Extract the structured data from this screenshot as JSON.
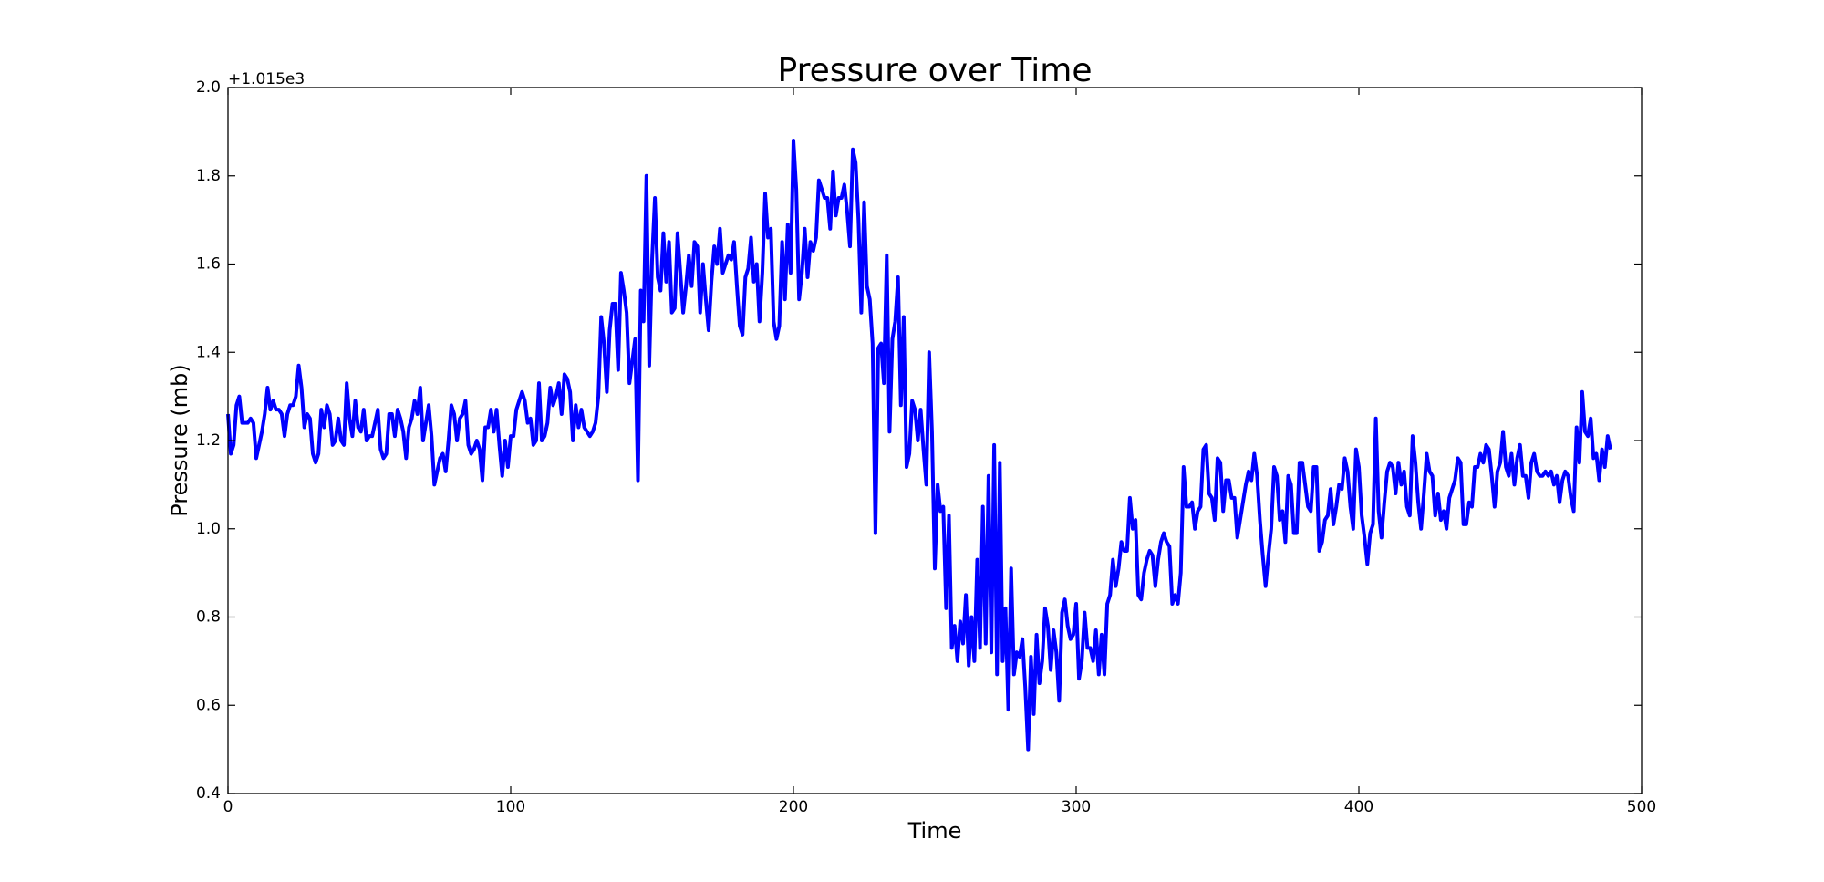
{
  "chart_data": {
    "type": "line",
    "title": "Pressure over Time",
    "x_label": "Time",
    "y_label": "Pressure (mb)",
    "y_offset_label": "+1.015e3",
    "xlim": [
      0,
      500
    ],
    "xticks": [
      0,
      100,
      200,
      300,
      400,
      500
    ],
    "ylim": [
      0.4,
      2.0
    ],
    "yticks": [
      0.4,
      0.6,
      0.8,
      {
        "value": 1.0,
        "label": "1.0"
      },
      1.2,
      1.4,
      1.6,
      1.8,
      {
        "value": 2.0,
        "label": "2.0"
      }
    ],
    "x": [
      0,
      1,
      2,
      3,
      4,
      5,
      6,
      7,
      8,
      9,
      10,
      11,
      12,
      13,
      14,
      15,
      16,
      17,
      18,
      19,
      20,
      21,
      22,
      23,
      24,
      25,
      26,
      27,
      28,
      29,
      30,
      31,
      32,
      33,
      34,
      35,
      36,
      37,
      38,
      39,
      40,
      41,
      42,
      43,
      44,
      45,
      46,
      47,
      48,
      49,
      50,
      51,
      52,
      53,
      54,
      55,
      56,
      57,
      58,
      59,
      60,
      61,
      62,
      63,
      64,
      65,
      66,
      67,
      68,
      69,
      70,
      71,
      72,
      73,
      74,
      75,
      76,
      77,
      78,
      79,
      80,
      81,
      82,
      83,
      84,
      85,
      86,
      87,
      88,
      89,
      90,
      91,
      92,
      93,
      94,
      95,
      96,
      97,
      98,
      99,
      100,
      101,
      102,
      103,
      104,
      105,
      106,
      107,
      108,
      109,
      110,
      111,
      112,
      113,
      114,
      115,
      116,
      117,
      118,
      119,
      120,
      121,
      122,
      123,
      124,
      125,
      126,
      127,
      128,
      129,
      130,
      131,
      132,
      133,
      134,
      135,
      136,
      137,
      138,
      139,
      140,
      141,
      142,
      143,
      144,
      145,
      146,
      147,
      148,
      149,
      150,
      151,
      152,
      153,
      154,
      155,
      156,
      157,
      158,
      159,
      160,
      161,
      162,
      163,
      164,
      165,
      166,
      167,
      168,
      169,
      170,
      171,
      172,
      173,
      174,
      175,
      176,
      177,
      178,
      179,
      180,
      181,
      182,
      183,
      184,
      185,
      186,
      187,
      188,
      189,
      190,
      191,
      192,
      193,
      194,
      195,
      196,
      197,
      198,
      199,
      200,
      201,
      202,
      203,
      204,
      205,
      206,
      207,
      208,
      209,
      210,
      211,
      212,
      213,
      214,
      215,
      216,
      217,
      218,
      219,
      220,
      221,
      222,
      223,
      224,
      225,
      226,
      227,
      228,
      229,
      230,
      231,
      232,
      233,
      234,
      235,
      236,
      237,
      238,
      239,
      240,
      241,
      242,
      243,
      244,
      245,
      246,
      247,
      248,
      249,
      250,
      251,
      252,
      253,
      254,
      255,
      256,
      257,
      258,
      259,
      260,
      261,
      262,
      263,
      264,
      265,
      266,
      267,
      268,
      269,
      270,
      271,
      272,
      273,
      274,
      275,
      276,
      277,
      278,
      279,
      280,
      281,
      282,
      283,
      284,
      285,
      286,
      287,
      288,
      289,
      290,
      291,
      292,
      293,
      294,
      295,
      296,
      297,
      298,
      299,
      300,
      301,
      302,
      303,
      304,
      305,
      306,
      307,
      308,
      309,
      310,
      311,
      312,
      313,
      314,
      315,
      316,
      317,
      318,
      319,
      320,
      321,
      322,
      323,
      324,
      325,
      326,
      327,
      328,
      329,
      330,
      331,
      332,
      333,
      334,
      335,
      336,
      337,
      338,
      339,
      340,
      341,
      342,
      343,
      344,
      345,
      346,
      347,
      348,
      349,
      350,
      351,
      352,
      353,
      354,
      355,
      356,
      357,
      358,
      359,
      360,
      361,
      362,
      363,
      364,
      365,
      366,
      367,
      368,
      369,
      370,
      371,
      372,
      373,
      374,
      375,
      376,
      377,
      378,
      379,
      380,
      381,
      382,
      383,
      384,
      385,
      386,
      387,
      388,
      389,
      390,
      391,
      392,
      393,
      394,
      395,
      396,
      397,
      398,
      399,
      400,
      401,
      402,
      403,
      404,
      405,
      406,
      407,
      408,
      409,
      410,
      411,
      412,
      413,
      414,
      415,
      416,
      417,
      418,
      419,
      420,
      421,
      422,
      423,
      424,
      425,
      426,
      427,
      428,
      429,
      430,
      431,
      432,
      433,
      434,
      435,
      436,
      437,
      438,
      439,
      440,
      441,
      442,
      443,
      444,
      445,
      446,
      447,
      448,
      449,
      450,
      451,
      452,
      453,
      454,
      455,
      456,
      457,
      458,
      459,
      460,
      461,
      462,
      463,
      464,
      465,
      466,
      467,
      468,
      469,
      470,
      471,
      472,
      473,
      474,
      475,
      476,
      477,
      478,
      479,
      480,
      481,
      482,
      483,
      484,
      485,
      486,
      487,
      488,
      489
    ],
    "series": [
      {
        "color": "#0000ff",
        "values": [
          1.26,
          1.17,
          1.19,
          1.28,
          1.3,
          1.24,
          1.24,
          1.24,
          1.25,
          1.24,
          1.16,
          1.19,
          1.22,
          1.26,
          1.32,
          1.27,
          1.29,
          1.27,
          1.27,
          1.26,
          1.21,
          1.26,
          1.28,
          1.28,
          1.3,
          1.37,
          1.32,
          1.23,
          1.26,
          1.25,
          1.17,
          1.15,
          1.17,
          1.27,
          1.23,
          1.28,
          1.26,
          1.19,
          1.2,
          1.25,
          1.2,
          1.19,
          1.33,
          1.25,
          1.21,
          1.29,
          1.23,
          1.22,
          1.27,
          1.2,
          1.21,
          1.21,
          1.24,
          1.27,
          1.18,
          1.16,
          1.17,
          1.26,
          1.26,
          1.21,
          1.27,
          1.25,
          1.22,
          1.16,
          1.23,
          1.25,
          1.29,
          1.26,
          1.32,
          1.2,
          1.24,
          1.28,
          1.21,
          1.1,
          1.13,
          1.16,
          1.17,
          1.13,
          1.2,
          1.28,
          1.26,
          1.2,
          1.25,
          1.26,
          1.29,
          1.19,
          1.17,
          1.18,
          1.2,
          1.18,
          1.11,
          1.23,
          1.23,
          1.27,
          1.22,
          1.27,
          1.19,
          1.12,
          1.2,
          1.14,
          1.21,
          1.21,
          1.27,
          1.29,
          1.31,
          1.29,
          1.24,
          1.25,
          1.19,
          1.2,
          1.33,
          1.2,
          1.21,
          1.24,
          1.32,
          1.28,
          1.3,
          1.33,
          1.26,
          1.35,
          1.34,
          1.31,
          1.2,
          1.28,
          1.23,
          1.27,
          1.23,
          1.22,
          1.21,
          1.22,
          1.24,
          1.3,
          1.48,
          1.42,
          1.31,
          1.45,
          1.51,
          1.51,
          1.36,
          1.58,
          1.54,
          1.49,
          1.33,
          1.38,
          1.43,
          1.11,
          1.54,
          1.47,
          1.8,
          1.37,
          1.61,
          1.75,
          1.57,
          1.54,
          1.67,
          1.56,
          1.65,
          1.49,
          1.5,
          1.67,
          1.58,
          1.49,
          1.55,
          1.62,
          1.55,
          1.65,
          1.64,
          1.49,
          1.6,
          1.52,
          1.45,
          1.56,
          1.64,
          1.6,
          1.68,
          1.58,
          1.6,
          1.62,
          1.61,
          1.65,
          1.55,
          1.46,
          1.44,
          1.57,
          1.59,
          1.66,
          1.56,
          1.6,
          1.47,
          1.58,
          1.76,
          1.66,
          1.68,
          1.47,
          1.43,
          1.46,
          1.65,
          1.52,
          1.69,
          1.58,
          1.88,
          1.77,
          1.52,
          1.58,
          1.68,
          1.57,
          1.65,
          1.63,
          1.66,
          1.79,
          1.77,
          1.75,
          1.75,
          1.68,
          1.81,
          1.71,
          1.75,
          1.75,
          1.78,
          1.72,
          1.64,
          1.86,
          1.83,
          1.7,
          1.49,
          1.74,
          1.55,
          1.52,
          1.42,
          0.99,
          1.41,
          1.42,
          1.33,
          1.62,
          1.22,
          1.43,
          1.47,
          1.57,
          1.28,
          1.48,
          1.14,
          1.17,
          1.29,
          1.27,
          1.2,
          1.27,
          1.18,
          1.1,
          1.4,
          1.22,
          0.91,
          1.1,
          1.04,
          1.05,
          0.82,
          1.03,
          0.73,
          0.78,
          0.7,
          0.79,
          0.74,
          0.85,
          0.69,
          0.8,
          0.7,
          0.93,
          0.73,
          1.05,
          0.74,
          1.12,
          0.72,
          1.19,
          0.67,
          1.15,
          0.7,
          0.82,
          0.59,
          0.91,
          0.67,
          0.72,
          0.71,
          0.75,
          0.64,
          0.5,
          0.71,
          0.58,
          0.76,
          0.65,
          0.7,
          0.82,
          0.78,
          0.68,
          0.77,
          0.72,
          0.61,
          0.81,
          0.84,
          0.78,
          0.75,
          0.76,
          0.83,
          0.66,
          0.7,
          0.81,
          0.73,
          0.73,
          0.7,
          0.77,
          0.67,
          0.76,
          0.67,
          0.83,
          0.85,
          0.93,
          0.87,
          0.91,
          0.97,
          0.95,
          0.95,
          1.07,
          1.0,
          1.02,
          0.85,
          0.84,
          0.9,
          0.93,
          0.95,
          0.94,
          0.87,
          0.93,
          0.97,
          0.99,
          0.97,
          0.96,
          0.83,
          0.85,
          0.83,
          0.9,
          1.14,
          1.05,
          1.05,
          1.06,
          1.0,
          1.04,
          1.05,
          1.18,
          1.19,
          1.08,
          1.07,
          1.02,
          1.16,
          1.15,
          1.04,
          1.11,
          1.11,
          1.07,
          1.07,
          0.98,
          1.02,
          1.06,
          1.1,
          1.13,
          1.11,
          1.17,
          1.12,
          1.02,
          0.94,
          0.87,
          0.94,
          1.0,
          1.14,
          1.12,
          1.02,
          1.04,
          0.97,
          1.12,
          1.1,
          0.99,
          0.99,
          1.15,
          1.15,
          1.1,
          1.05,
          1.04,
          1.14,
          1.14,
          0.95,
          0.97,
          1.02,
          1.03,
          1.09,
          1.01,
          1.05,
          1.1,
          1.09,
          1.16,
          1.13,
          1.05,
          1.0,
          1.18,
          1.14,
          1.03,
          0.98,
          0.92,
          0.99,
          1.01,
          1.25,
          1.04,
          0.98,
          1.06,
          1.13,
          1.15,
          1.14,
          1.08,
          1.15,
          1.1,
          1.13,
          1.05,
          1.03,
          1.21,
          1.15,
          1.06,
          1.0,
          1.08,
          1.17,
          1.13,
          1.12,
          1.03,
          1.08,
          1.02,
          1.04,
          1.0,
          1.07,
          1.09,
          1.11,
          1.16,
          1.15,
          1.01,
          1.01,
          1.06,
          1.05,
          1.14,
          1.14,
          1.17,
          1.15,
          1.19,
          1.18,
          1.12,
          1.05,
          1.13,
          1.15,
          1.22,
          1.14,
          1.12,
          1.17,
          1.1,
          1.16,
          1.19,
          1.12,
          1.12,
          1.07,
          1.15,
          1.17,
          1.13,
          1.12,
          1.12,
          1.13,
          1.12,
          1.13,
          1.1,
          1.12,
          1.06,
          1.11,
          1.13,
          1.12,
          1.07,
          1.04,
          1.23,
          1.15,
          1.31,
          1.22,
          1.21,
          1.25,
          1.16,
          1.17,
          1.11,
          1.18,
          1.14,
          1.21,
          1.18
        ]
      }
    ]
  }
}
